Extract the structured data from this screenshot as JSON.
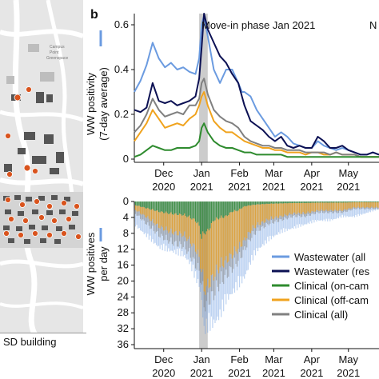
{
  "panel_label": "b",
  "map": {
    "caption": "SD building",
    "place_label_1": "Campus",
    "place_label_2": "Point",
    "place_label_3": "Greenspace"
  },
  "colors": {
    "ww_all": "#6b9be0",
    "ww_res": "#0b1053",
    "clin_on": "#2e8b2e",
    "clin_off": "#f0a31e",
    "clin_all": "#808080",
    "marker": "#d9541e",
    "shade": "#cccccc"
  },
  "chart_data": [
    {
      "type": "line",
      "annotation": "Move-in phase Jan 2021",
      "annotation_right": "N",
      "ylabel": "WW positivity",
      "ylabel2": "(7-day average)",
      "ylim": [
        0,
        0.65
      ],
      "yticks": [
        "0",
        "0.2",
        "0.4",
        "0.6"
      ],
      "ytick_values": [
        0,
        0.2,
        0.4,
        0.6
      ],
      "xticks": [
        {
          "line1": "Dec",
          "line2": "2020",
          "t": 24
        },
        {
          "line1": "Jan",
          "line2": "2021",
          "t": 55
        },
        {
          "line1": "Feb",
          "line2": "2021",
          "t": 86
        },
        {
          "line1": "Mar",
          "line2": "2021",
          "t": 114
        },
        {
          "line1": "Apr",
          "line2": "2021",
          "t": 145
        },
        {
          "line1": "May",
          "line2": "2021",
          "t": 175
        }
      ],
      "t_range": [
        0,
        200
      ],
      "shade_range": [
        53,
        60
      ],
      "series": [
        {
          "key": "ww_all",
          "x": [
            0,
            5,
            10,
            15,
            20,
            25,
            30,
            35,
            40,
            45,
            50,
            53,
            55,
            57,
            60,
            65,
            70,
            75,
            80,
            85,
            88,
            90,
            95,
            100,
            105,
            110,
            115,
            120,
            125,
            130,
            135,
            140,
            145,
            150,
            155,
            160,
            165,
            170,
            175,
            180,
            185,
            190,
            195,
            200
          ],
          "values": [
            0.3,
            0.35,
            0.42,
            0.52,
            0.45,
            0.41,
            0.43,
            0.4,
            0.41,
            0.39,
            0.38,
            0.45,
            0.6,
            0.64,
            0.55,
            0.4,
            0.34,
            0.4,
            0.4,
            0.34,
            0.3,
            0.3,
            0.28,
            0.22,
            0.18,
            0.14,
            0.1,
            0.12,
            0.1,
            0.07,
            0.06,
            0.05,
            0.05,
            0.08,
            0.06,
            0.05,
            0.04,
            0.05,
            0.04,
            0.03,
            0.02,
            0.02,
            0.03,
            0.02
          ]
        },
        {
          "key": "ww_res",
          "x": [
            0,
            5,
            10,
            15,
            20,
            25,
            30,
            35,
            40,
            45,
            50,
            53,
            55,
            57,
            60,
            65,
            70,
            75,
            80,
            85,
            88,
            90,
            95,
            100,
            105,
            110,
            115,
            120,
            125,
            130,
            135,
            140,
            145,
            150,
            155,
            160,
            165,
            170,
            175,
            180,
            185,
            190,
            195,
            200
          ],
          "values": [
            0.22,
            0.21,
            0.23,
            0.34,
            0.26,
            0.25,
            0.26,
            0.24,
            0.25,
            0.26,
            0.28,
            0.36,
            0.5,
            0.65,
            0.58,
            0.52,
            0.46,
            0.43,
            0.38,
            0.34,
            0.28,
            0.24,
            0.17,
            0.15,
            0.13,
            0.1,
            0.08,
            0.1,
            0.06,
            0.05,
            0.06,
            0.05,
            0.05,
            0.1,
            0.08,
            0.05,
            0.05,
            0.06,
            0.04,
            0.03,
            0.02,
            0.02,
            0.03,
            0.02
          ]
        },
        {
          "key": "clin_off",
          "x": [
            0,
            5,
            10,
            15,
            20,
            25,
            30,
            35,
            40,
            45,
            50,
            53,
            55,
            57,
            60,
            65,
            70,
            75,
            80,
            85,
            90,
            95,
            100,
            105,
            110,
            115,
            120,
            125,
            130,
            135,
            140,
            145,
            150,
            155,
            160,
            165,
            170,
            175,
            180,
            185,
            190,
            195,
            200
          ],
          "values": [
            0.08,
            0.12,
            0.16,
            0.22,
            0.18,
            0.14,
            0.15,
            0.16,
            0.15,
            0.18,
            0.2,
            0.24,
            0.28,
            0.3,
            0.24,
            0.17,
            0.14,
            0.12,
            0.12,
            0.1,
            0.08,
            0.07,
            0.06,
            0.05,
            0.05,
            0.04,
            0.04,
            0.03,
            0.03,
            0.03,
            0.02,
            0.03,
            0.03,
            0.02,
            0.02,
            0.03,
            0.02,
            0.02,
            0.02,
            0.01,
            0.01,
            0.01,
            0.01
          ]
        },
        {
          "key": "clin_all",
          "x": [
            0,
            5,
            10,
            15,
            20,
            25,
            30,
            35,
            40,
            45,
            50,
            53,
            55,
            57,
            60,
            65,
            70,
            75,
            80,
            85,
            90,
            95,
            100,
            105,
            110,
            115,
            120,
            125,
            130,
            135,
            140,
            145,
            150,
            155,
            160,
            165,
            170,
            175,
            180,
            185,
            190,
            195,
            200
          ],
          "values": [
            0.12,
            0.15,
            0.2,
            0.27,
            0.22,
            0.19,
            0.2,
            0.21,
            0.2,
            0.24,
            0.24,
            0.27,
            0.34,
            0.36,
            0.29,
            0.22,
            0.19,
            0.17,
            0.16,
            0.14,
            0.1,
            0.08,
            0.07,
            0.06,
            0.06,
            0.05,
            0.05,
            0.04,
            0.04,
            0.04,
            0.03,
            0.03,
            0.03,
            0.03,
            0.02,
            0.03,
            0.02,
            0.02,
            0.02,
            0.01,
            0.01,
            0.01,
            0.01
          ]
        },
        {
          "key": "clin_on",
          "x": [
            0,
            5,
            10,
            15,
            20,
            25,
            30,
            35,
            40,
            45,
            50,
            53,
            55,
            57,
            60,
            65,
            70,
            75,
            80,
            85,
            90,
            95,
            100,
            105,
            110,
            115,
            120,
            125,
            130,
            135,
            140,
            145,
            150,
            155,
            160,
            165,
            170,
            175,
            180,
            185,
            190,
            195,
            200
          ],
          "values": [
            0.01,
            0.02,
            0.04,
            0.06,
            0.05,
            0.04,
            0.04,
            0.05,
            0.05,
            0.05,
            0.06,
            0.08,
            0.14,
            0.16,
            0.12,
            0.08,
            0.06,
            0.05,
            0.05,
            0.04,
            0.03,
            0.03,
            0.02,
            0.02,
            0.02,
            0.02,
            0.02,
            0.01,
            0.01,
            0.01,
            0.01,
            0.01,
            0.01,
            0.01,
            0.01,
            0.01,
            0.01,
            0.01,
            0.01,
            0.01,
            0.01,
            0.01,
            0.01
          ]
        }
      ]
    },
    {
      "type": "bar",
      "ylabel": "WW positives",
      "ylabel2": "per day",
      "ylim": [
        0,
        37
      ],
      "inverted": true,
      "yticks": [
        "0",
        "4",
        "8",
        "12",
        "16",
        "20",
        "24",
        "28",
        "32",
        "36"
      ],
      "ytick_values": [
        0,
        4,
        8,
        12,
        16,
        20,
        24,
        28,
        32,
        36
      ],
      "legend": [
        {
          "key": "ww_all",
          "label": "Wastewater (all"
        },
        {
          "key": "ww_res",
          "label": "Wastewater (res"
        },
        {
          "key": "clin_on",
          "label": "Clinical (on-cam"
        },
        {
          "key": "clin_off",
          "label": "Clinical (off-cam"
        },
        {
          "key": "clin_all",
          "label": "Clinical (all)"
        }
      ],
      "profile": {
        "t": [
          0,
          10,
          20,
          30,
          40,
          45,
          50,
          53,
          55,
          57,
          60,
          65,
          70,
          75,
          80,
          85,
          90,
          95,
          100,
          110,
          120,
          130,
          140,
          150,
          160,
          170,
          180,
          190,
          200
        ],
        "ww_all": [
          6,
          9,
          12,
          13,
          14,
          16,
          20,
          22,
          26,
          34,
          33,
          32,
          30,
          26,
          24,
          22,
          20,
          16,
          13,
          10,
          8,
          7,
          6,
          5,
          5,
          4,
          4,
          3,
          2
        ],
        "clin_total": [
          3,
          6,
          9,
          11,
          12,
          14,
          17,
          19,
          22,
          28,
          27,
          25,
          22,
          20,
          18,
          16,
          13,
          10,
          8,
          6,
          5,
          4,
          4,
          3,
          3,
          3,
          2,
          2,
          2
        ],
        "clin_on_frac": [
          0.3,
          0.3,
          0.3,
          0.3,
          0.3,
          0.3,
          0.3,
          0.35,
          0.45,
          0.3,
          0.3,
          0.2,
          0.2,
          0.2,
          0.15,
          0.15,
          0.1,
          0.1,
          0.1,
          0.1,
          0.1,
          0.1,
          0.1,
          0.1,
          0.1,
          0.1,
          0.1,
          0.1,
          0.1
        ],
        "clin_off_frac": [
          0.4,
          0.4,
          0.45,
          0.45,
          0.45,
          0.45,
          0.45,
          0.45,
          0.4,
          0.55,
          0.55,
          0.6,
          0.6,
          0.6,
          0.65,
          0.65,
          0.7,
          0.7,
          0.7,
          0.7,
          0.7,
          0.7,
          0.7,
          0.7,
          0.7,
          0.7,
          0.7,
          0.7,
          0.7
        ]
      }
    }
  ]
}
